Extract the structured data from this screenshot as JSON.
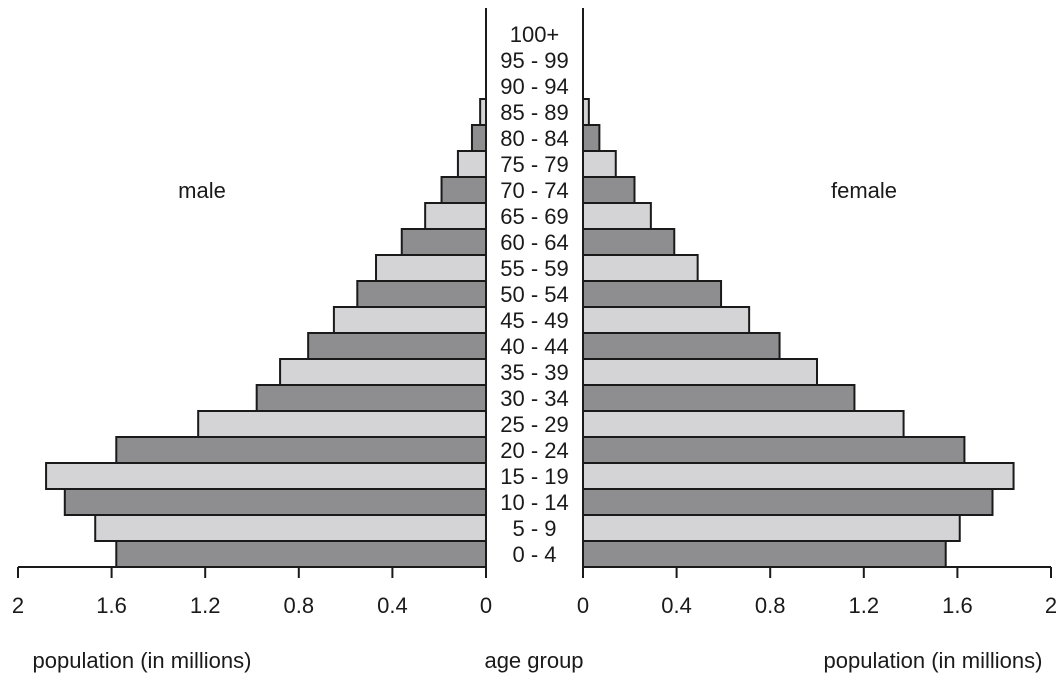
{
  "chart_data": {
    "type": "bar",
    "orientation": "horizontal",
    "layout": "population-pyramid",
    "categories": [
      "0 - 4",
      "5 - 9",
      "10 - 14",
      "15 - 19",
      "20 - 24",
      "25 - 29",
      "30 - 34",
      "35 - 39",
      "40 - 44",
      "45 - 49",
      "50 - 54",
      "55 - 59",
      "60 - 64",
      "65 - 69",
      "70 - 74",
      "75 - 79",
      "80 - 84",
      "85 - 89",
      "90 - 94",
      "95 - 99",
      "100+"
    ],
    "series": [
      {
        "name": "male",
        "values": [
          1.58,
          1.67,
          1.8,
          1.88,
          1.58,
          1.23,
          0.98,
          0.88,
          0.76,
          0.65,
          0.55,
          0.47,
          0.36,
          0.26,
          0.19,
          0.12,
          0.06,
          0.025,
          0,
          0,
          0
        ]
      },
      {
        "name": "female",
        "values": [
          1.55,
          1.61,
          1.75,
          1.84,
          1.63,
          1.37,
          1.16,
          1.0,
          0.84,
          0.71,
          0.59,
          0.49,
          0.39,
          0.29,
          0.22,
          0.14,
          0.07,
          0.025,
          0,
          0,
          0
        ]
      }
    ],
    "xlim": [
      0,
      2
    ],
    "xticks": [
      "0",
      "0.4",
      "0.8",
      "1.2",
      "1.6",
      "2"
    ],
    "xlabel_left": "population (in millions)",
    "xlabel_right": "population (in millions)",
    "center_label": "age group",
    "colors": {
      "dark": "#8e8e91",
      "light": "#d4d4d6"
    },
    "grid": false,
    "legend": "none"
  }
}
